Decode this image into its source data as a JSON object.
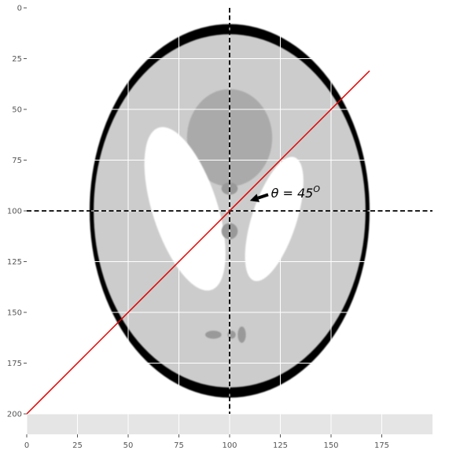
{
  "chart_data": {
    "type": "image",
    "title": "",
    "xlabel": "",
    "ylabel": "",
    "xlim": [
      0,
      200
    ],
    "ylim": [
      210,
      0
    ],
    "xticks": [
      "0",
      "25",
      "50",
      "75",
      "100",
      "125",
      "150",
      "175"
    ],
    "yticks": [
      "0",
      "25",
      "50",
      "75",
      "100",
      "125",
      "150",
      "175",
      "200"
    ],
    "grid": true,
    "style": "ggplot",
    "image": {
      "description_hidden": true,
      "extent": [
        0,
        200,
        200,
        0
      ],
      "colormap": "gray",
      "outer_ellipse": {
        "cx": 100,
        "cy": 100,
        "rx": 69,
        "ry": 92
      },
      "inner_ellipse": {
        "cx": 100,
        "cy": 100,
        "rx": 67,
        "ry": 87
      },
      "ventricle_left": {
        "cx": 78,
        "cy": 99,
        "rx": 16,
        "ry": 42,
        "angle_deg": -18
      },
      "ventricle_right": {
        "cx": 122,
        "cy": 104,
        "rx": 11,
        "ry": 32,
        "angle_deg": 18
      },
      "top_blob": {
        "cx": 100,
        "cy": 64,
        "rx": 21,
        "ry": 24
      },
      "small_features": [
        {
          "cx": 100,
          "cy": 89,
          "rx": 4,
          "ry": 3
        },
        {
          "cx": 100,
          "cy": 110,
          "rx": 4,
          "ry": 4
        },
        {
          "cx": 92,
          "cy": 161,
          "rx": 4,
          "ry": 2
        },
        {
          "cx": 101,
          "cy": 161,
          "rx": 2,
          "ry": 2
        },
        {
          "cx": 106,
          "cy": 161,
          "rx": 2,
          "ry": 4
        }
      ],
      "colors": {
        "background": "#ffffff",
        "skull": "#000000",
        "brain": "#cccccc",
        "blob": "#aaaaaa",
        "ventricle": "#ffffff",
        "feature": "#999999"
      }
    },
    "lines": [
      {
        "style": "dashed",
        "color": "#000000",
        "x": [
          100,
          100
        ],
        "y": [
          0,
          200
        ]
      },
      {
        "style": "dashed",
        "color": "#000000",
        "x": [
          0,
          200
        ],
        "y": [
          100,
          100
        ]
      },
      {
        "style": "solid",
        "color": "#e00000",
        "x": [
          0,
          169
        ],
        "y": [
          200,
          31
        ]
      }
    ],
    "annotation": {
      "text": "θ = 45",
      "superscript": "O",
      "text_x": 120,
      "text_y": 91,
      "arrow_from": [
        119,
        92
      ],
      "arrow_to": [
        110,
        95
      ]
    }
  }
}
